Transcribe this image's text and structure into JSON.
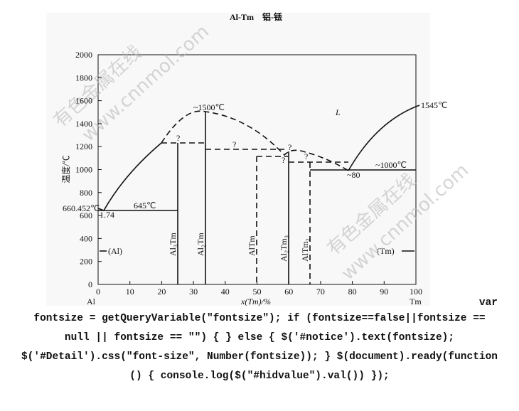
{
  "diagram": {
    "title": "Al-Tm　铝-铥",
    "y_axis": {
      "label": "温度/℃",
      "ticks": [
        0,
        200,
        400,
        600,
        800,
        1000,
        1200,
        1400,
        1600,
        1800,
        2000
      ]
    },
    "x_axis": {
      "label": "x(Tm)/%",
      "ticks": [
        0,
        10,
        20,
        30,
        40,
        50,
        60,
        70,
        80,
        90,
        100
      ],
      "left_end": "Al",
      "right_end": "Tm"
    },
    "annotations": [
      "660.452℃",
      "1.74",
      "645℃",
      "~1500℃",
      "L",
      "1545℃",
      "?",
      "?",
      "?",
      "?",
      "?",
      "~1000℃",
      "~80",
      "(Al)",
      "(Tm)"
    ],
    "phases": [
      "Al₃Tm",
      "Al₂Tm",
      "AlTm",
      "Al₂Tm₃",
      "AlTm₂"
    ],
    "watermarks": [
      "有色金属在线",
      "www.cnnmol.com"
    ]
  },
  "code": {
    "lines": [
      "var",
      "fontsize = getQueryVariable(\"fontsize\"); if (fontsize==false||fontsize ==",
      "null || fontsize == \"\") { } else { $('#notice').text(fontsize);",
      "$('#Detail').css(\"font-size\", Number(fontsize)); } $(document).ready(function",
      "() { console.log($(\"#hidvalue\").val()) });"
    ]
  }
}
